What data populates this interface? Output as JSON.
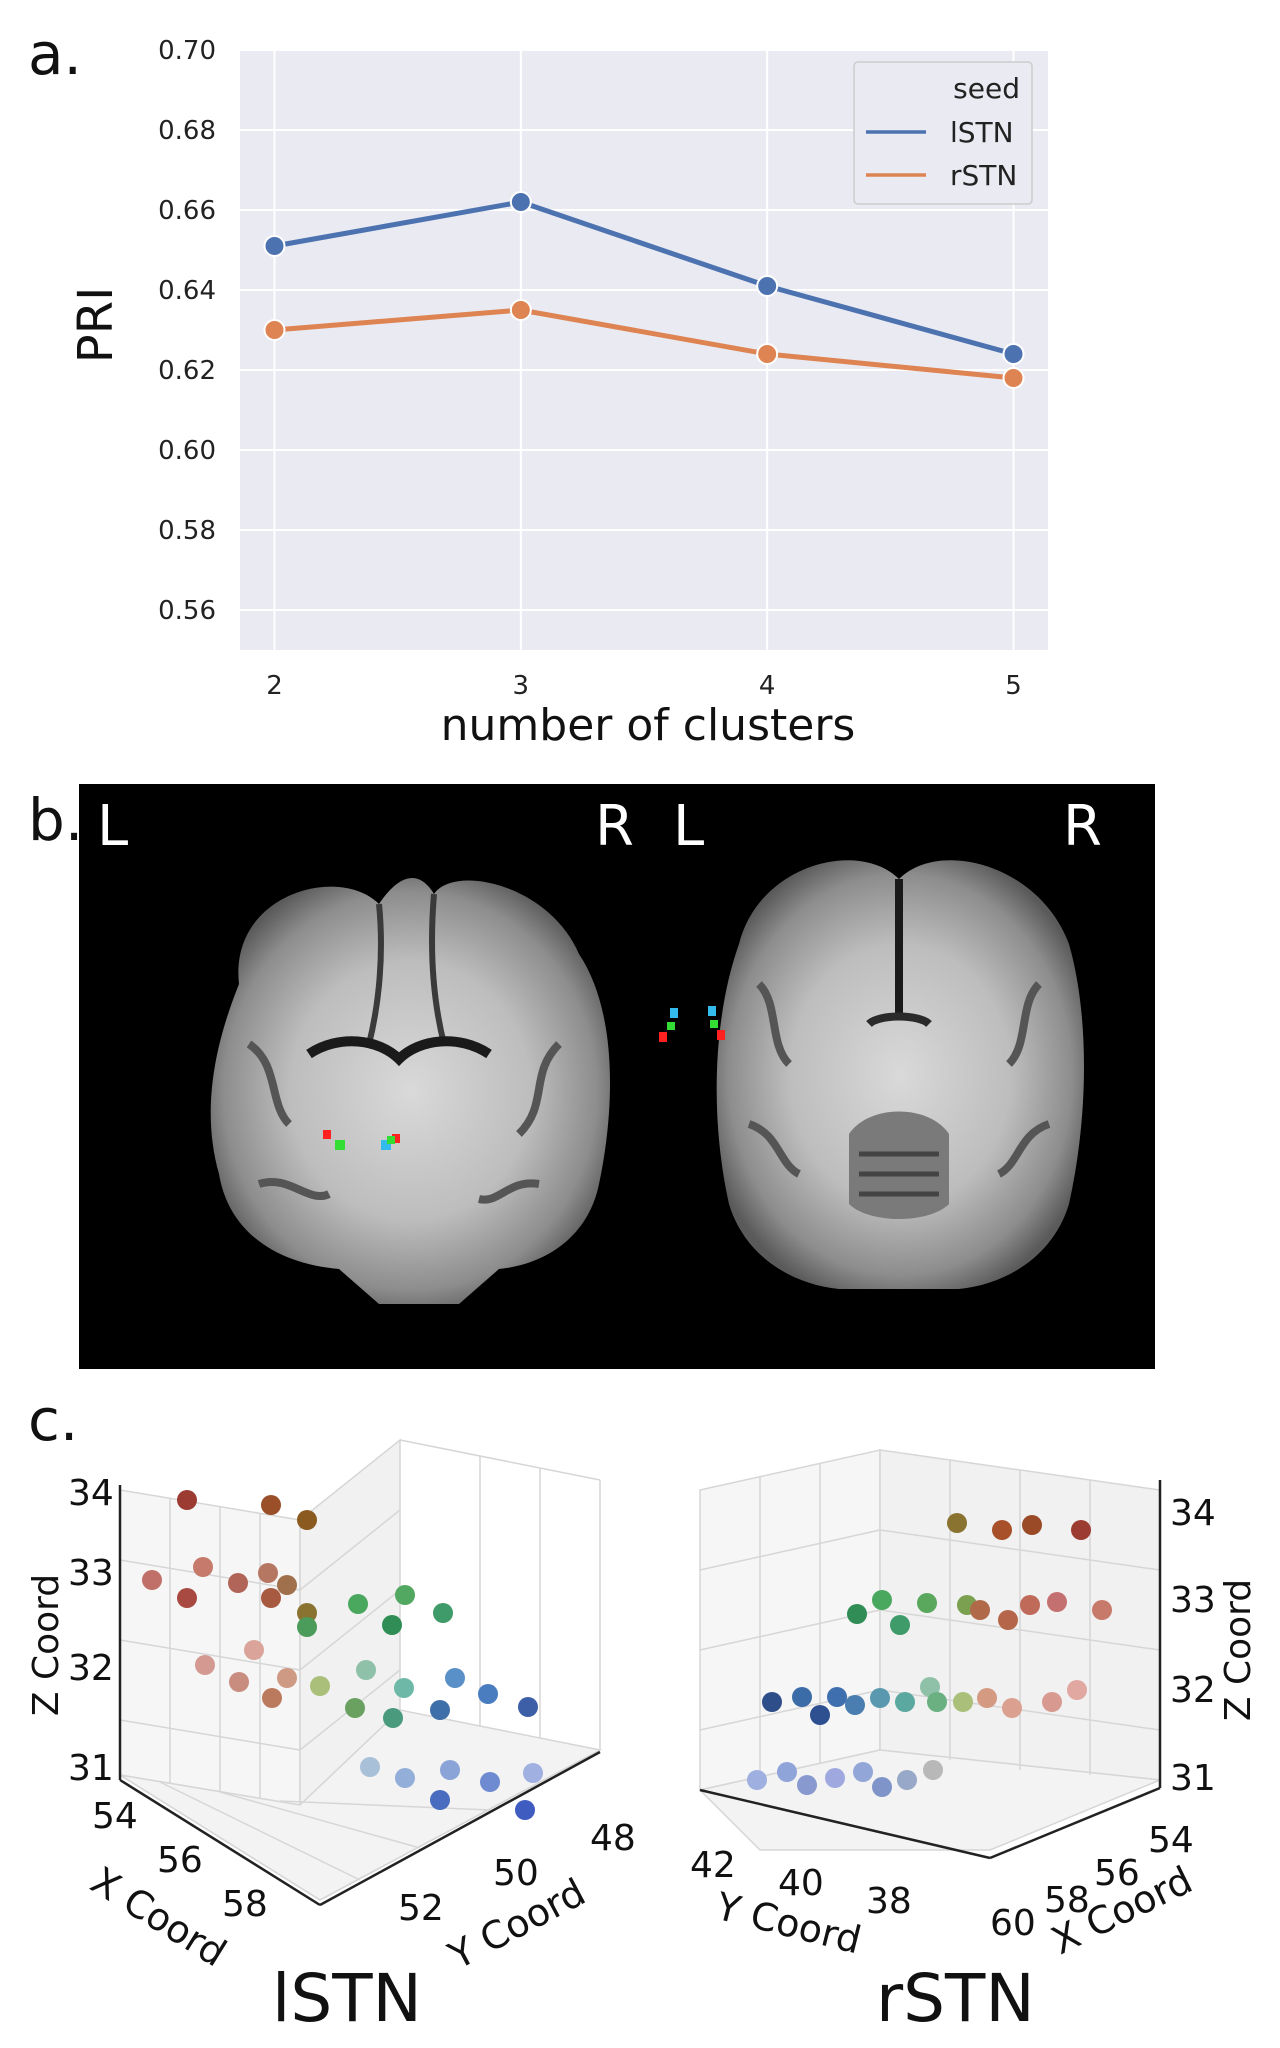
{
  "panels": {
    "a": "a.",
    "b": "b.",
    "c": "c."
  },
  "chart_data": {
    "type": "line",
    "x": [
      2,
      3,
      4,
      5
    ],
    "xlabel": "number of clusters",
    "ylabel": "PRI",
    "yticks": [
      "0.56",
      "0.58",
      "0.60",
      "0.62",
      "0.64",
      "0.66",
      "0.68",
      "0.70"
    ],
    "xticks": [
      "2",
      "3",
      "4",
      "5"
    ],
    "ylim": [
      0.55,
      0.7
    ],
    "legend": {
      "title": "seed",
      "placement": "top-right"
    },
    "series": [
      {
        "name": "lSTN",
        "values": [
          0.651,
          0.662,
          0.641,
          0.624
        ],
        "color": "#4C72B0"
      },
      {
        "name": "rSTN",
        "values": [
          0.63,
          0.635,
          0.624,
          0.618
        ],
        "color": "#DD8452"
      }
    ],
    "grid": true
  },
  "brain": {
    "left_L": "L",
    "left_R": "R",
    "right_L": "L",
    "right_R": "R"
  },
  "scatter3d": {
    "left": {
      "zlabel": "Z Coord",
      "xlabel": "X Coord",
      "ylabel": "Y Coord",
      "zticks": [
        "34",
        "33",
        "32",
        "31"
      ],
      "xticks": [
        "54",
        "56",
        "58"
      ],
      "yticks": [
        "52",
        "50",
        "48"
      ],
      "caption": "lSTN"
    },
    "right": {
      "zlabel": "Z Coord",
      "xlabel": "X Coord",
      "ylabel": "Y Coord",
      "zticks": [
        "34",
        "33",
        "32",
        "31"
      ],
      "xticks": [
        "54",
        "56",
        "58",
        "60"
      ],
      "yticks": [
        "42",
        "40",
        "38"
      ],
      "caption": "rSTN"
    }
  }
}
